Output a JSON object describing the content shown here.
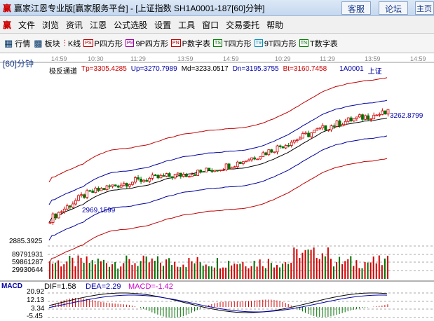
{
  "window": {
    "title": "赢家江恩专业版[赢家服务平台] - [上证指数  SH1A0001-187[60]分钟]",
    "buttons": [
      "客服",
      "论坛",
      "主页"
    ]
  },
  "menu": [
    "文件",
    "浏览",
    "资讯",
    "江恩",
    "公式选股",
    "设置",
    "工具",
    "窗口",
    "交易委托",
    "帮助"
  ],
  "toolbar": [
    {
      "icon": "grid-icon",
      "code": "",
      "label": "行情"
    },
    {
      "icon": "blocks-icon",
      "code": "",
      "label": "板块"
    },
    {
      "icon": "candle-icon",
      "code": "",
      "label": "K线"
    },
    {
      "icon": "ps-icon",
      "code": "PS",
      "label": "P四方形",
      "color": "#c00000"
    },
    {
      "icon": "p9-icon",
      "code": "P9",
      "label": "9P四方形",
      "color": "#a000a0"
    },
    {
      "icon": "pn-icon",
      "code": "PN",
      "label": "P数字表",
      "color": "#c00000"
    },
    {
      "icon": "ts-icon",
      "code": "TS",
      "label": "T四方形",
      "color": "#008000"
    },
    {
      "icon": "t9-icon",
      "code": "T9",
      "label": "9T四方形",
      "color": "#0090c0"
    },
    {
      "icon": "tn-icon",
      "code": "TN",
      "label": "T数字表",
      "color": "#008000"
    }
  ],
  "period": "[60]分钟",
  "time_axis": [
    "14:59",
    "10:30",
    "11:29",
    "13:59",
    "14:59",
    "10:29",
    "11:29",
    "13:59",
    "14:59"
  ],
  "indicator": {
    "name": "极反通道",
    "tp": "Tp=3305.4285",
    "up": "Up=3270.7989",
    "md": "Md=3233.0517",
    "dn": "Dn=3195.3755",
    "bt": "Bt=3160.7458",
    "code": "1A0001",
    "market": "上证"
  },
  "price_marks": {
    "high": "3262.8799",
    "low": "2969.1599",
    "axis_low": "2885.3925"
  },
  "volume_axis": [
    "89791931",
    "59861287",
    "29930644"
  ],
  "macd": {
    "title": "MACD",
    "dif": "DIF=1.58",
    "dea": "DEA=2.29",
    "macd": "MACD=-1.42",
    "axis": [
      "20.92",
      "12.13",
      "3.34",
      "-5.45"
    ]
  },
  "colors": {
    "up": "#d00000",
    "down": "#007000",
    "outer_band": "#c00000",
    "inner_band": "#0000a0",
    "mid_band": "#000000"
  }
}
